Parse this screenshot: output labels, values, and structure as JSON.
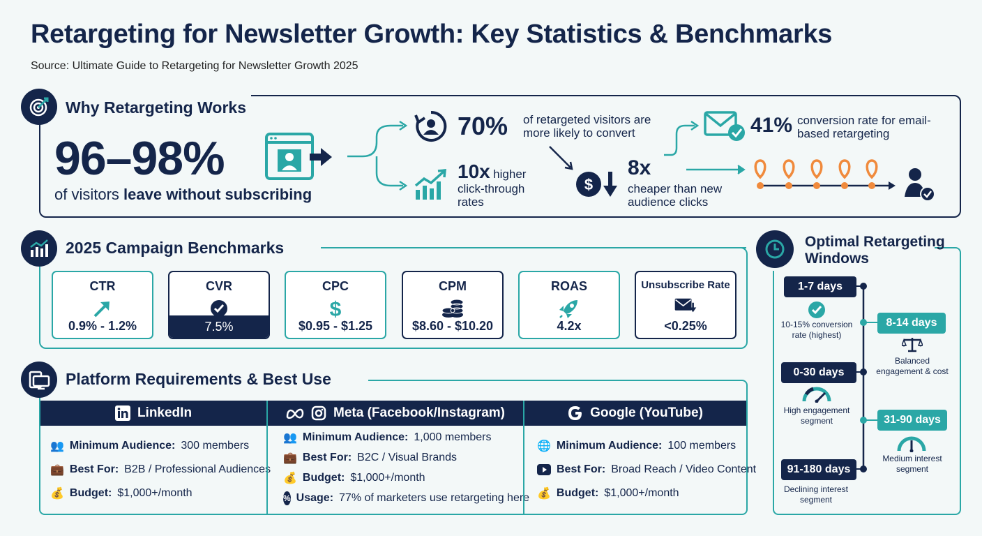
{
  "title": "Retargeting for Newsletter Growth: Key Statistics & Benchmarks",
  "source": "Source: Ultimate Guide to Retargeting for Newsletter Growth 2025",
  "why": {
    "heading": "Why Retargeting Works",
    "main_stat": "96–98%",
    "main_text_a": "of visitors ",
    "main_text_b": "leave without subscribing",
    "s70_num": "70%",
    "s70_text": "of retargeted visitors are more likely to convert",
    "s10_num": "10x",
    "s10_text_a": "higher",
    "s10_text_b": "click-through rates",
    "s8_num": "8x",
    "s8_text": "cheaper than new audience clicks",
    "s41_num": "41%",
    "s41_text": "conversion rate for email-based retargeting"
  },
  "benchmarks": {
    "heading": "2025 Campaign Benchmarks",
    "cards": [
      {
        "label": "CTR",
        "value": "0.9% - 1.2%",
        "icon": "arrow-up-right-icon"
      },
      {
        "label": "CVR",
        "value": "7.5%",
        "icon": "check-circle-icon"
      },
      {
        "label": "CPC",
        "value": "$0.95 - $1.25",
        "icon": "dollar-icon"
      },
      {
        "label": "CPM",
        "value": "$8.60 - $10.20",
        "icon": "coins-icon"
      },
      {
        "label": "ROAS",
        "value": "4.2x",
        "icon": "rocket-icon"
      },
      {
        "label": "Unsubscribe Rate",
        "value": "<0.25%",
        "icon": "mail-down-icon"
      }
    ]
  },
  "platforms": {
    "heading": "Platform Requirements & Best Use",
    "linkedin": {
      "name": "LinkedIn",
      "r1_k": "Minimum Audience:",
      "r1_v": "300 members",
      "r2_k": "Best For:",
      "r2_v": "B2B / Professional Audiences",
      "r3_k": "Budget:",
      "r3_v": "$1,000+/month"
    },
    "meta": {
      "name": "Meta (Facebook/Instagram)",
      "r1_k": "Minimum Audience:",
      "r1_v": "1,000 members",
      "r2_k": "Best For:",
      "r2_v": "B2C / Visual Brands",
      "r3_k": "Budget:",
      "r3_v": "$1,000+/month",
      "r4_k": "Usage:",
      "r4_v": "77% of marketers use retargeting here"
    },
    "google": {
      "name": "Google (YouTube)",
      "r1_k": "Minimum Audience:",
      "r1_v": "100 members",
      "r2_k": "Best For:",
      "r2_v": "Broad Reach / Video Content",
      "r3_k": "Budget:",
      "r3_v": "$1,000+/month"
    }
  },
  "windows": {
    "heading": "Optimal Retargeting Windows",
    "w1": "1-7 days",
    "w1_desc": "10-15% conversion rate (highest)",
    "w2": "8-14 days",
    "w2_desc": "Balanced engagement & cost",
    "w3": "0-30 days",
    "w3_desc": "High engagement segment",
    "w4": "31-90 days",
    "w4_desc": "Medium interest segment",
    "w5": "91-180 days",
    "w5_desc": "Declining interest segment"
  },
  "colors": {
    "navy": "#14254a",
    "teal": "#2aa7a6",
    "orange": "#f08a3c",
    "background": "#f3f8f8"
  }
}
